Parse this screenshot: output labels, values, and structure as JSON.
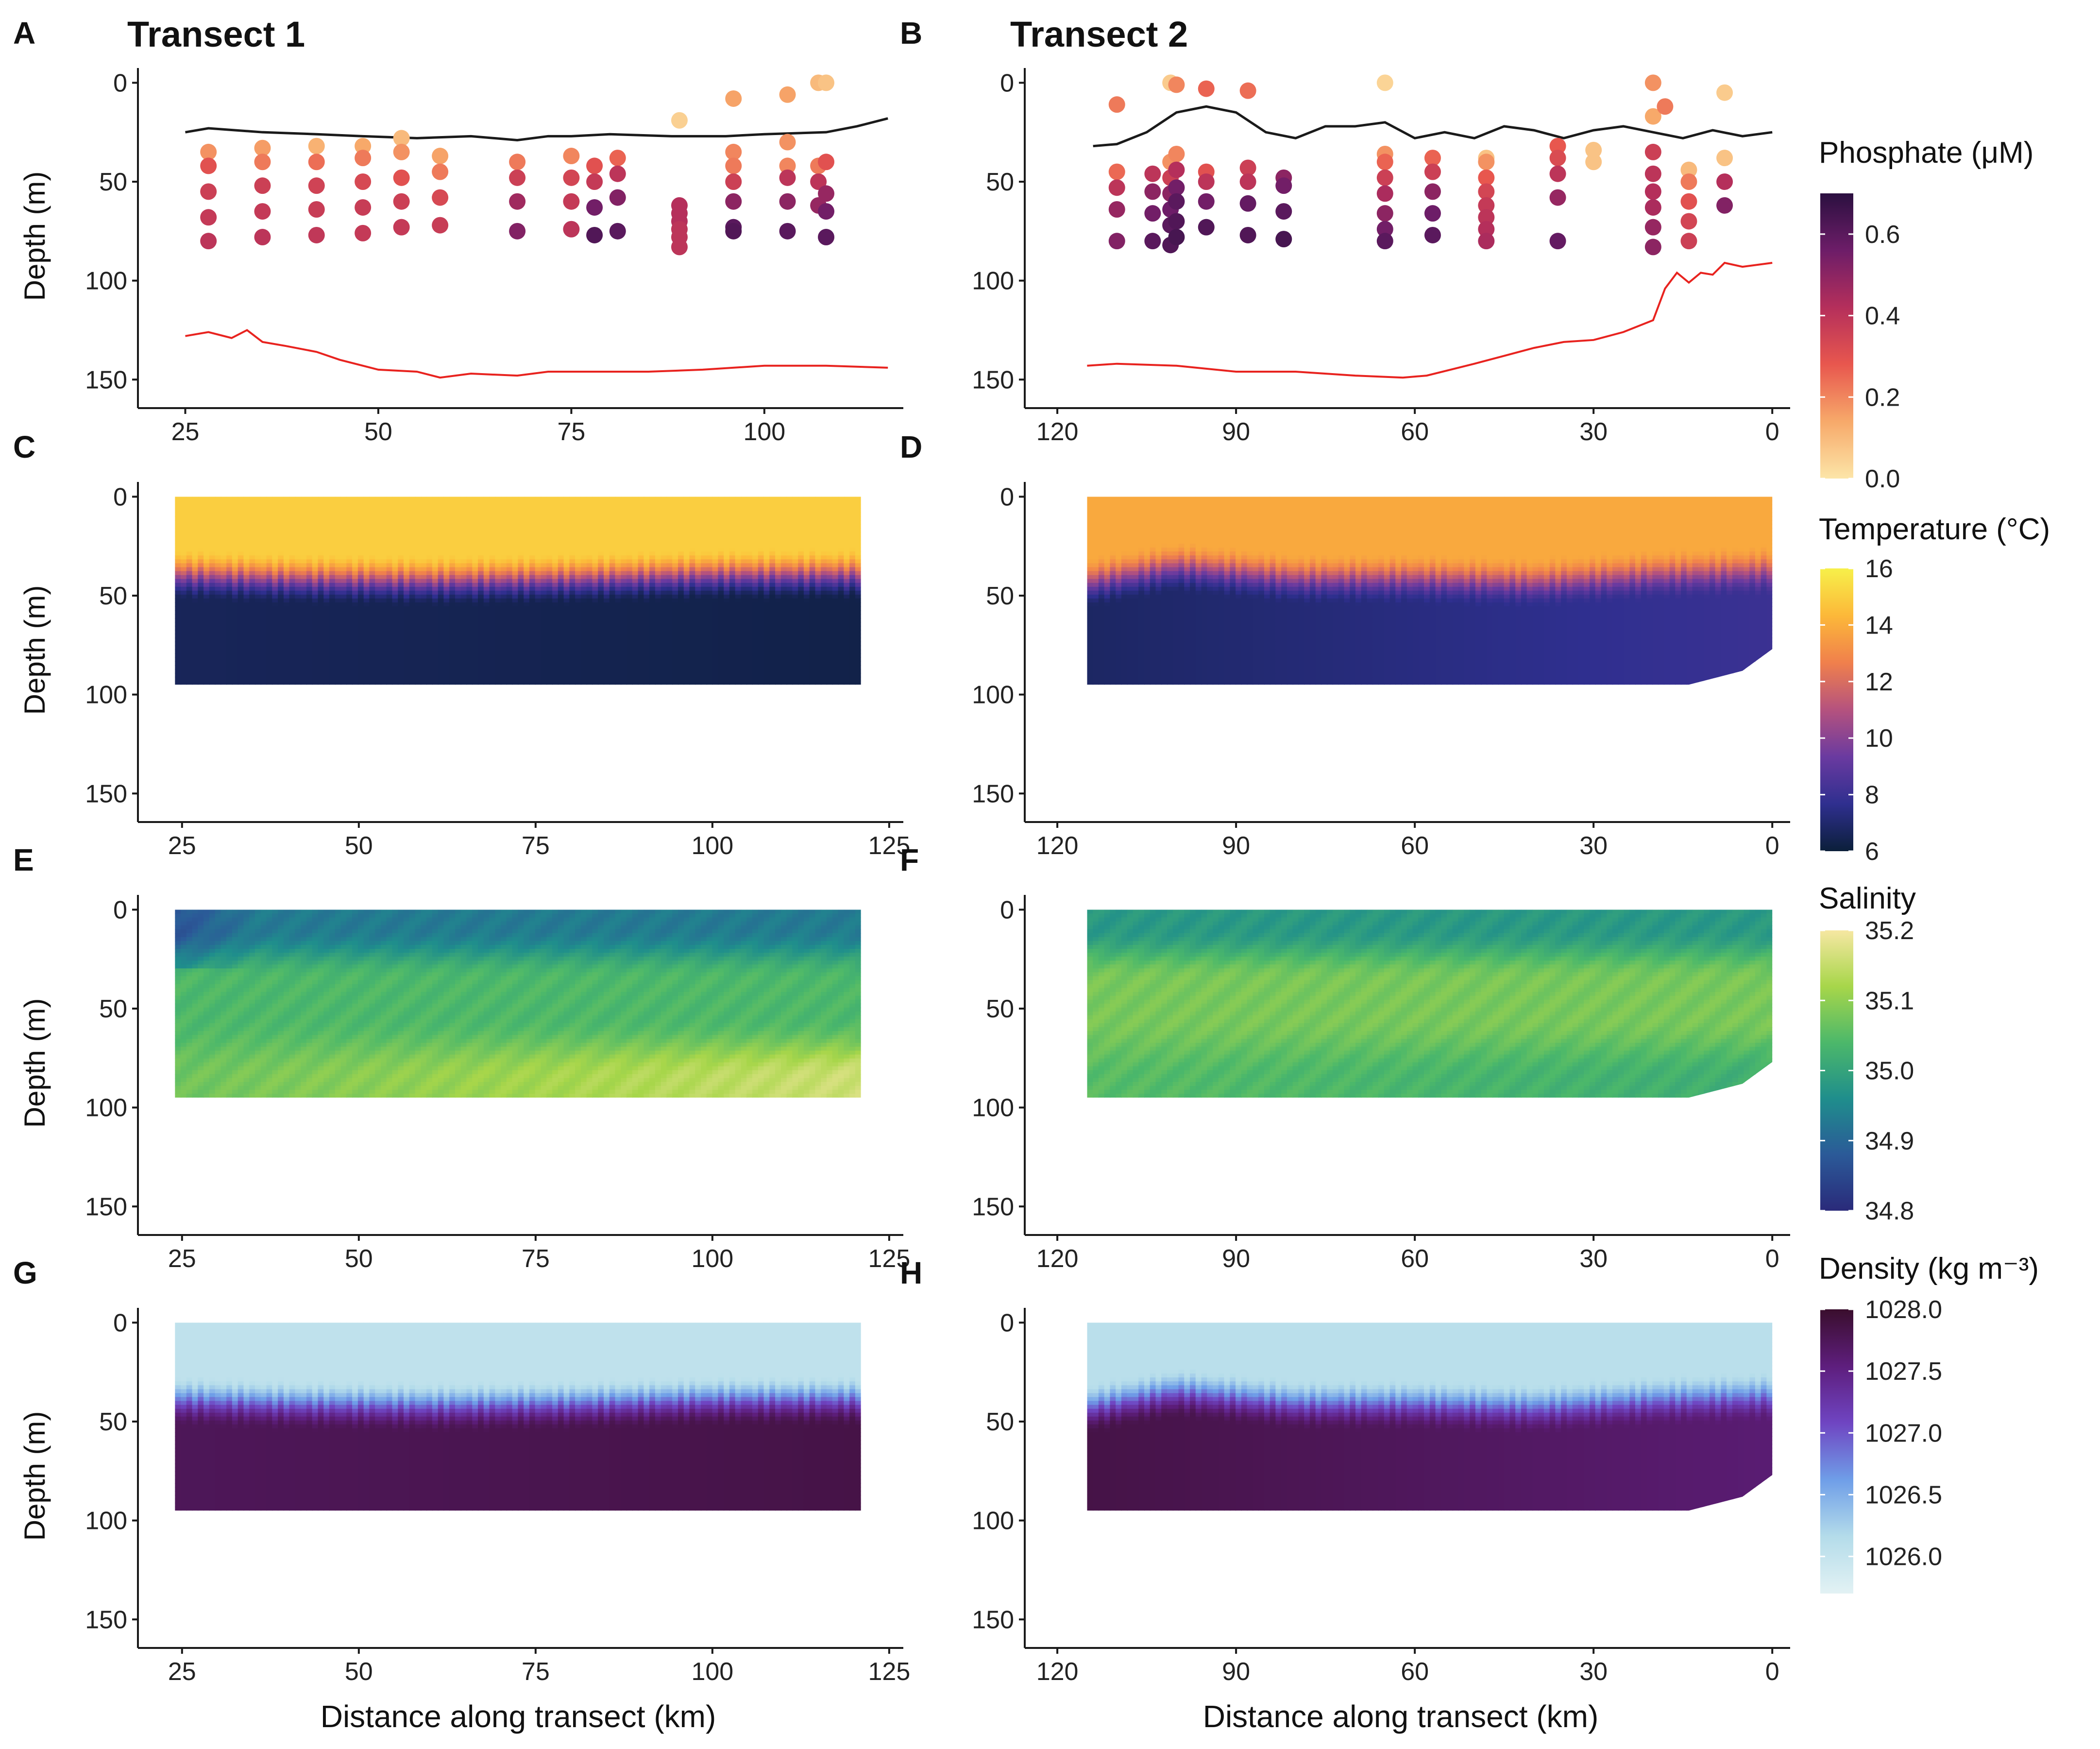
{
  "figure": {
    "panel_letters": [
      "A",
      "B",
      "C",
      "D",
      "E",
      "F",
      "G",
      "H"
    ],
    "column_titles": [
      "Transect 1",
      "Transect 2"
    ],
    "ylabel": "Depth (m)",
    "xlabel": "Distance along transect (km)"
  },
  "chart_data": [
    {
      "panel": "A",
      "type": "scatter",
      "variable": "Phosphate",
      "title": "Transect 1",
      "xlabel": "",
      "ylabel": "Depth (m)",
      "xlim": [
        20,
        118
      ],
      "ylim": [
        160,
        -5
      ],
      "xticks": [
        "25",
        "50",
        "75",
        "100"
      ],
      "yticks": [
        "0",
        "50",
        "100",
        "150"
      ],
      "mixed_layer_depth": {
        "x": [
          25,
          28,
          35,
          42,
          48,
          55,
          62,
          68,
          72,
          75,
          80,
          88,
          95,
          100,
          108,
          112,
          116
        ],
        "y": [
          25,
          23,
          25,
          26,
          27,
          28,
          27,
          29,
          27,
          27,
          26,
          27,
          27,
          26,
          25,
          22,
          18
        ]
      },
      "bottom_depth": {
        "x": [
          25,
          28,
          31,
          33,
          35,
          38,
          42,
          45,
          50,
          55,
          58,
          62,
          68,
          72,
          78,
          85,
          92,
          100,
          108,
          116
        ],
        "y": [
          128,
          126,
          129,
          125,
          131,
          133,
          136,
          140,
          145,
          146,
          149,
          147,
          148,
          146,
          146,
          146,
          145,
          143,
          143,
          144
        ]
      },
      "stations": [
        {
          "x": 28,
          "depths": [
            35,
            42,
            55,
            68,
            80
          ],
          "values": [
            0.18,
            0.3,
            0.36,
            0.38,
            0.4
          ]
        },
        {
          "x": 35,
          "depths": [
            33,
            40,
            52,
            65,
            78
          ],
          "values": [
            0.16,
            0.22,
            0.36,
            0.38,
            0.4
          ]
        },
        {
          "x": 42,
          "depths": [
            32,
            40,
            52,
            64,
            77
          ],
          "values": [
            0.12,
            0.24,
            0.35,
            0.37,
            0.39
          ]
        },
        {
          "x": 48,
          "depths": [
            32,
            38,
            50,
            63,
            76
          ],
          "values": [
            0.14,
            0.22,
            0.33,
            0.37,
            0.38
          ]
        },
        {
          "x": 53,
          "depths": [
            28,
            35,
            48,
            60,
            73
          ],
          "values": [
            0.1,
            0.18,
            0.3,
            0.36,
            0.38
          ]
        },
        {
          "x": 58,
          "depths": [
            37,
            45,
            58,
            72
          ],
          "values": [
            0.15,
            0.22,
            0.33,
            0.37
          ]
        },
        {
          "x": 68,
          "depths": [
            40,
            48,
            60,
            75
          ],
          "values": [
            0.22,
            0.36,
            0.46,
            0.52
          ]
        },
        {
          "x": 75,
          "depths": [
            37,
            48,
            60,
            74
          ],
          "values": [
            0.2,
            0.34,
            0.38,
            0.4
          ]
        },
        {
          "x": 78,
          "depths": [
            42,
            50,
            63,
            77
          ],
          "values": [
            0.3,
            0.38,
            0.55,
            0.62
          ]
        },
        {
          "x": 81,
          "depths": [
            38,
            46,
            58,
            75
          ],
          "values": [
            0.26,
            0.4,
            0.52,
            0.6
          ]
        },
        {
          "x": 89,
          "depths": [
            19,
            62,
            66,
            70,
            74,
            78,
            83
          ],
          "values": [
            0.05,
            0.42,
            0.42,
            0.42,
            0.4,
            0.4,
            0.4
          ]
        },
        {
          "x": 96,
          "depths": [
            8,
            35,
            42,
            50,
            60,
            73,
            75
          ],
          "values": [
            0.15,
            0.2,
            0.22,
            0.36,
            0.5,
            0.6,
            0.62
          ]
        },
        {
          "x": 103,
          "depths": [
            6,
            30,
            42,
            48,
            60,
            75
          ],
          "values": [
            0.15,
            0.18,
            0.2,
            0.4,
            0.5,
            0.6
          ]
        },
        {
          "x": 107,
          "depths": [
            0,
            42,
            50,
            62
          ],
          "values": [
            0.1,
            0.22,
            0.4,
            0.48
          ]
        },
        {
          "x": 108,
          "depths": [
            0,
            40,
            56,
            65,
            78
          ],
          "values": [
            0.08,
            0.3,
            0.48,
            0.55,
            0.6
          ]
        }
      ]
    },
    {
      "panel": "B",
      "type": "scatter",
      "variable": "Phosphate",
      "title": "Transect 2",
      "xlabel": "",
      "ylabel": "",
      "xlim": [
        124,
        -3
      ],
      "ylim": [
        160,
        -5
      ],
      "xticks": [
        "120",
        "90",
        "60",
        "30",
        "0"
      ],
      "yticks": [
        "0",
        "50",
        "100",
        "150"
      ],
      "mixed_layer_depth": {
        "x": [
          114,
          110,
          105,
          100,
          95,
          90,
          85,
          80,
          75,
          70,
          65,
          60,
          55,
          50,
          45,
          40,
          35,
          30,
          25,
          20,
          15,
          10,
          5,
          0
        ],
        "y": [
          32,
          31,
          25,
          15,
          12,
          15,
          25,
          28,
          22,
          22,
          20,
          28,
          25,
          28,
          22,
          24,
          28,
          24,
          22,
          25,
          28,
          24,
          27,
          25
        ]
      },
      "bottom_depth": {
        "x": [
          115,
          110,
          100,
          90,
          80,
          70,
          62,
          58,
          54,
          50,
          45,
          40,
          35,
          30,
          25,
          20,
          18,
          16,
          14,
          12,
          10,
          8,
          5,
          0
        ],
        "y": [
          143,
          142,
          143,
          146,
          146,
          148,
          149,
          148,
          145,
          142,
          138,
          134,
          131,
          130,
          126,
          120,
          104,
          96,
          101,
          96,
          97,
          91,
          93,
          91
        ]
      },
      "stations": [
        {
          "x": 110,
          "depths": [
            11,
            45,
            53,
            64,
            80
          ],
          "values": [
            0.22,
            0.25,
            0.4,
            0.48,
            0.52
          ]
        },
        {
          "x": 104,
          "depths": [
            46,
            55,
            66,
            80
          ],
          "values": [
            0.4,
            0.5,
            0.55,
            0.6
          ]
        },
        {
          "x": 101,
          "depths": [
            0,
            40,
            48,
            56,
            64,
            72,
            82
          ],
          "values": [
            0.06,
            0.18,
            0.36,
            0.5,
            0.56,
            0.6,
            0.62
          ]
        },
        {
          "x": 100,
          "depths": [
            1,
            36,
            44,
            53,
            60,
            70,
            78
          ],
          "values": [
            0.2,
            0.2,
            0.42,
            0.55,
            0.6,
            0.62,
            0.64
          ]
        },
        {
          "x": 95,
          "depths": [
            3,
            45,
            50,
            60,
            73
          ],
          "values": [
            0.26,
            0.3,
            0.4,
            0.55,
            0.62
          ]
        },
        {
          "x": 88,
          "depths": [
            4,
            43,
            50,
            61,
            77
          ],
          "values": [
            0.24,
            0.36,
            0.4,
            0.58,
            0.62
          ]
        },
        {
          "x": 82,
          "depths": [
            48,
            52,
            65,
            79
          ],
          "values": [
            0.5,
            0.55,
            0.6,
            0.64
          ]
        },
        {
          "x": 65,
          "depths": [
            0,
            36,
            40,
            48,
            56,
            66,
            74,
            80
          ],
          "values": [
            0.04,
            0.18,
            0.26,
            0.36,
            0.44,
            0.5,
            0.55,
            0.6
          ]
        },
        {
          "x": 57,
          "depths": [
            38,
            45,
            55,
            66,
            77
          ],
          "values": [
            0.26,
            0.36,
            0.5,
            0.56,
            0.6
          ]
        },
        {
          "x": 48,
          "depths": [
            38,
            40,
            48,
            55,
            62,
            68,
            74,
            80
          ],
          "values": [
            0.08,
            0.18,
            0.28,
            0.34,
            0.38,
            0.4,
            0.42,
            0.44
          ]
        },
        {
          "x": 36,
          "depths": [
            32,
            38,
            46,
            58,
            80
          ],
          "values": [
            0.28,
            0.32,
            0.4,
            0.48,
            0.58
          ]
        },
        {
          "x": 30,
          "depths": [
            34,
            40
          ],
          "values": [
            0.08,
            0.08
          ]
        },
        {
          "x": 20,
          "depths": [
            0,
            17,
            35,
            46,
            55,
            63,
            73,
            83
          ],
          "values": [
            0.18,
            0.14,
            0.36,
            0.4,
            0.42,
            0.44,
            0.48,
            0.5
          ]
        },
        {
          "x": 18,
          "depths": [
            12
          ],
          "values": [
            0.22
          ]
        },
        {
          "x": 14,
          "depths": [
            44,
            50,
            60,
            70,
            80
          ],
          "values": [
            0.1,
            0.22,
            0.3,
            0.34,
            0.36
          ]
        },
        {
          "x": 8,
          "depths": [
            5,
            38,
            50,
            62
          ],
          "values": [
            0.06,
            0.08,
            0.42,
            0.52
          ]
        }
      ]
    },
    {
      "panel": "C",
      "type": "heatmap",
      "variable": "Temperature",
      "title": "",
      "xlabel": "",
      "ylabel": "Depth (m)",
      "xlim": [
        20,
        127
      ],
      "ylim": [
        160,
        -5
      ],
      "xticks": [
        "25",
        "50",
        "75",
        "100",
        "125"
      ],
      "yticks": [
        "0",
        "50",
        "100",
        "150"
      ],
      "x_extent": [
        24,
        121
      ],
      "max_depth": 95,
      "thermocline_depth": {
        "x": [
          24,
          40,
          60,
          80,
          100,
          121
        ],
        "y": [
          30,
          32,
          33,
          32,
          30,
          30
        ]
      },
      "surface_value": 15.0,
      "deep_value": 6.6,
      "deep_value_far": 6.3
    },
    {
      "panel": "D",
      "type": "heatmap",
      "variable": "Temperature",
      "title": "",
      "xlabel": "",
      "ylabel": "",
      "xlim": [
        124,
        -3
      ],
      "ylim": [
        160,
        -5
      ],
      "xticks": [
        "120",
        "90",
        "60",
        "30",
        "0"
      ],
      "yticks": [
        "0",
        "50",
        "100",
        "150"
      ],
      "x_extent": [
        115,
        0
      ],
      "max_depth": 95,
      "thermocline_depth": {
        "x": [
          115,
          100,
          80,
          60,
          40,
          20,
          0
        ],
        "y": [
          34,
          26,
          32,
          32,
          34,
          30,
          28
        ]
      },
      "surface_value": 13.9,
      "deep_value": 6.8,
      "deep_value_far": 8.0
    },
    {
      "panel": "E",
      "type": "heatmap",
      "variable": "Salinity",
      "title": "",
      "xlabel": "",
      "ylabel": "Depth (m)",
      "xlim": [
        20,
        127
      ],
      "ylim": [
        160,
        -5
      ],
      "xticks": [
        "25",
        "50",
        "75",
        "100",
        "125"
      ],
      "yticks": [
        "0",
        "50",
        "100",
        "150"
      ],
      "x_extent": [
        24,
        121
      ],
      "max_depth": 95,
      "surface_value": 34.93,
      "mid_value": 35.04,
      "deep_value": 35.07,
      "deep_value_far": 35.16
    },
    {
      "panel": "F",
      "type": "heatmap",
      "variable": "Salinity",
      "title": "",
      "xlabel": "",
      "ylabel": "",
      "xlim": [
        124,
        -3
      ],
      "ylim": [
        160,
        -5
      ],
      "xticks": [
        "120",
        "90",
        "60",
        "30",
        "0"
      ],
      "yticks": [
        "0",
        "50",
        "100",
        "150"
      ],
      "x_extent": [
        115,
        0
      ],
      "max_depth": 95,
      "surface_value": 34.98,
      "mid_value": 35.08,
      "deep_value": 35.05,
      "deep_value_far": 35.02
    },
    {
      "panel": "G",
      "type": "heatmap",
      "variable": "Density",
      "title": "",
      "xlabel": "Distance along transect (km)",
      "ylabel": "Depth (m)",
      "xlim": [
        20,
        127
      ],
      "ylim": [
        160,
        -5
      ],
      "xticks": [
        "25",
        "50",
        "75",
        "100",
        "125"
      ],
      "yticks": [
        "0",
        "50",
        "100",
        "150"
      ],
      "x_extent": [
        24,
        121
      ],
      "max_depth": 95,
      "thermocline_depth": {
        "x": [
          24,
          40,
          60,
          80,
          100,
          121
        ],
        "y": [
          30,
          32,
          33,
          32,
          30,
          30
        ]
      },
      "surface_value": 1026.05,
      "deep_value": 1027.75,
      "deep_value_far": 1027.85
    },
    {
      "panel": "H",
      "type": "heatmap",
      "variable": "Density",
      "title": "",
      "xlabel": "Distance along transect (km)",
      "ylabel": "",
      "xlim": [
        124,
        -3
      ],
      "ylim": [
        160,
        -5
      ],
      "xticks": [
        "120",
        "90",
        "60",
        "30",
        "0"
      ],
      "yticks": [
        "0",
        "50",
        "100",
        "150"
      ],
      "x_extent": [
        115,
        0
      ],
      "max_depth": 95,
      "thermocline_depth": {
        "x": [
          115,
          100,
          80,
          60,
          40,
          20,
          0
        ],
        "y": [
          34,
          26,
          32,
          32,
          34,
          30,
          28
        ]
      },
      "surface_value": 1026.1,
      "deep_value": 1027.85,
      "deep_value_far": 1027.6
    }
  ],
  "legends": [
    {
      "variable": "Phosphate",
      "title": "Phosphate (μM)",
      "title_text": "Phosphate",
      "unit": "(μM)",
      "range": [
        0.0,
        0.7
      ],
      "ticks": [
        "0.0",
        "0.2",
        "0.4",
        "0.6"
      ],
      "tick_values": [
        0.0,
        0.2,
        0.4,
        0.6
      ],
      "colors": [
        "#fce5a8",
        "#f7a96a",
        "#e8574e",
        "#b52f5b",
        "#6d1d68",
        "#2b1040"
      ]
    },
    {
      "variable": "Temperature",
      "title": "Temperature (°C)",
      "title_text": "Temperature",
      "unit": "(°C)",
      "range": [
        6,
        16
      ],
      "ticks": [
        "6",
        "8",
        "10",
        "12",
        "14",
        "16"
      ],
      "tick_values": [
        6,
        8,
        10,
        12,
        14,
        16
      ],
      "colors": [
        "#0b1f3a",
        "#2f2f8f",
        "#6a3aa0",
        "#b5527e",
        "#f0804c",
        "#fcb839",
        "#f7f04a"
      ]
    },
    {
      "variable": "Salinity",
      "title": "Salinity",
      "title_text": "Salinity",
      "unit": "",
      "range": [
        34.8,
        35.2
      ],
      "ticks": [
        "34.8",
        "34.9",
        "35.0",
        "35.1",
        "35.2"
      ],
      "tick_values": [
        34.8,
        34.9,
        35.0,
        35.1,
        35.2
      ],
      "colors": [
        "#2a2a7a",
        "#2b5a98",
        "#1f8e8c",
        "#4cb86a",
        "#a7d64a",
        "#f6e7a2"
      ]
    },
    {
      "variable": "Density",
      "title": "Density (kg m⁻³)",
      "title_text": "Density",
      "unit": "(kg m⁻³)",
      "range": [
        1025.7,
        1028.0
      ],
      "ticks": [
        "1026.0",
        "1026.5",
        "1027.0",
        "1027.5",
        "1028.0"
      ],
      "tick_values": [
        1026.0,
        1026.5,
        1027.0,
        1027.5,
        1028.0
      ],
      "colors": [
        "#e3f2f4",
        "#b4dcea",
        "#6f9ee8",
        "#6f45c2",
        "#5e1e7d",
        "#3a0e2d"
      ]
    }
  ],
  "colors": {
    "mixed_layer_line": "#1a1a1a",
    "bottom_line": "#e8231f",
    "axis": "#1a1a1a"
  }
}
